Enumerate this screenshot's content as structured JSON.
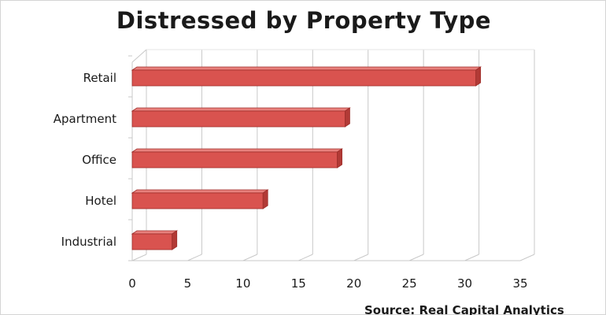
{
  "chart_data": {
    "type": "bar",
    "orientation": "horizontal",
    "title": "Distressed by Property Type",
    "source_text": "Source: Real Capital Analytics",
    "categories": [
      "Retail",
      "Apartment",
      "Office",
      "Hotel",
      "Industrial"
    ],
    "values": [
      31,
      19.2,
      18.5,
      11.8,
      3.6
    ],
    "xlim": [
      0,
      35
    ],
    "xticks": [
      "0",
      "5",
      "10",
      "15",
      "20",
      "25",
      "30",
      "35"
    ],
    "grid": true,
    "style": "3d",
    "colors": {
      "bar_face": "#d9534f",
      "bar_top": "#e8807c",
      "bar_end": "#b23a36",
      "grid": "#c8c8c8"
    }
  }
}
